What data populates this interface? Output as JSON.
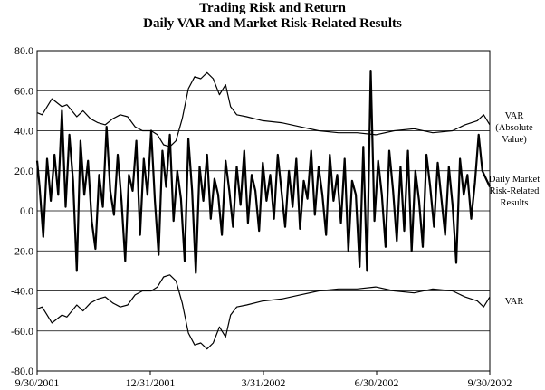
{
  "chart_data": {
    "type": "line",
    "title": "Trading Risk and Return",
    "subtitle": "Daily VAR and Market Risk-Related Results",
    "xlabel": "",
    "ylabel": "",
    "ylim": [
      -80,
      80
    ],
    "yticks": [
      "80.0",
      "60.0",
      "40.0",
      "20.0",
      "0.0",
      "-20.0",
      "-40.0",
      "-60.0",
      "-80.0"
    ],
    "xticks": [
      "9/30/2001",
      "12/31/2001",
      "3/31/2002",
      "6/30/2002",
      "9/30/2002"
    ],
    "grid": true,
    "legend_placement": "right",
    "series": [
      {
        "name": "VAR (Absolute Value)",
        "legend_lines": [
          "VAR",
          "(Absolute",
          "Value)"
        ],
        "dates": [
          "2001-09-30",
          "2001-10-04",
          "2001-10-08",
          "2001-10-12",
          "2001-10-16",
          "2001-10-20",
          "2001-10-24",
          "2001-10-28",
          "2001-11-01",
          "2001-11-06",
          "2001-11-12",
          "2001-11-18",
          "2001-11-24",
          "2001-11-30",
          "2001-12-06",
          "2001-12-12",
          "2001-12-18",
          "2001-12-24",
          "2001-12-31",
          "2002-01-05",
          "2002-01-10",
          "2002-01-15",
          "2002-01-20",
          "2002-01-25",
          "2002-01-30",
          "2002-02-04",
          "2002-02-09",
          "2002-02-14",
          "2002-02-19",
          "2002-02-24",
          "2002-03-01",
          "2002-03-05",
          "2002-03-10",
          "2002-03-18",
          "2002-03-31",
          "2002-04-15",
          "2002-04-30",
          "2002-05-15",
          "2002-05-31",
          "2002-06-15",
          "2002-06-30",
          "2002-07-15",
          "2002-07-31",
          "2002-08-15",
          "2002-08-31",
          "2002-09-10",
          "2002-09-20",
          "2002-09-25",
          "2002-09-30"
        ],
        "values": [
          49,
          48,
          52,
          56,
          54,
          52,
          53,
          50,
          47,
          50,
          46,
          44,
          43,
          46,
          48,
          47,
          42,
          40,
          40,
          38,
          33,
          32,
          35,
          46,
          61,
          67,
          66,
          69,
          66,
          58,
          63,
          52,
          48,
          47,
          45,
          44,
          42,
          40,
          39,
          39,
          38,
          40,
          41,
          39,
          40,
          43,
          45,
          48,
          43
        ]
      },
      {
        "name": "Daily Market Risk-Related Results",
        "legend_lines": [
          "Daily Market",
          "Risk-Related",
          "Results"
        ],
        "dates": [
          "2001-09-30",
          "2001-10-02",
          "2001-10-05",
          "2001-10-08",
          "2001-10-11",
          "2001-10-14",
          "2001-10-17",
          "2001-10-20",
          "2001-10-23",
          "2001-10-26",
          "2001-10-29",
          "2001-11-01",
          "2001-11-04",
          "2001-11-07",
          "2001-11-10",
          "2001-11-13",
          "2001-11-16",
          "2001-11-19",
          "2001-11-22",
          "2001-11-25",
          "2001-11-28",
          "2001-12-01",
          "2001-12-04",
          "2001-12-07",
          "2001-12-10",
          "2001-12-13",
          "2001-12-16",
          "2001-12-19",
          "2001-12-22",
          "2001-12-25",
          "2001-12-28",
          "2001-12-31",
          "2002-01-03",
          "2002-01-06",
          "2002-01-09",
          "2002-01-12",
          "2002-01-15",
          "2002-01-18",
          "2002-01-21",
          "2002-01-24",
          "2002-01-27",
          "2002-01-30",
          "2002-02-02",
          "2002-02-05",
          "2002-02-08",
          "2002-02-11",
          "2002-02-14",
          "2002-02-17",
          "2002-02-20",
          "2002-02-23",
          "2002-02-26",
          "2002-03-01",
          "2002-03-04",
          "2002-03-07",
          "2002-03-10",
          "2002-03-13",
          "2002-03-16",
          "2002-03-19",
          "2002-03-22",
          "2002-03-25",
          "2002-03-28",
          "2002-03-31",
          "2002-04-03",
          "2002-04-06",
          "2002-04-09",
          "2002-04-12",
          "2002-04-15",
          "2002-04-18",
          "2002-04-21",
          "2002-04-24",
          "2002-04-27",
          "2002-04-30",
          "2002-05-03",
          "2002-05-06",
          "2002-05-09",
          "2002-05-12",
          "2002-05-15",
          "2002-05-18",
          "2002-05-21",
          "2002-05-24",
          "2002-05-27",
          "2002-05-30",
          "2002-06-02",
          "2002-06-05",
          "2002-06-08",
          "2002-06-11",
          "2002-06-14",
          "2002-06-17",
          "2002-06-20",
          "2002-06-23",
          "2002-06-26",
          "2002-06-29",
          "2002-07-02",
          "2002-07-05",
          "2002-07-08",
          "2002-07-11",
          "2002-07-14",
          "2002-07-17",
          "2002-07-20",
          "2002-07-23",
          "2002-07-26",
          "2002-07-29",
          "2002-08-01",
          "2002-08-04",
          "2002-08-07",
          "2002-08-10",
          "2002-08-13",
          "2002-08-16",
          "2002-08-19",
          "2002-08-22",
          "2002-08-25",
          "2002-08-28",
          "2002-08-31",
          "2002-09-03",
          "2002-09-06",
          "2002-09-09",
          "2002-09-12",
          "2002-09-15",
          "2002-09-18",
          "2002-09-21",
          "2002-09-24",
          "2002-09-27",
          "2002-09-30"
        ],
        "values": [
          25,
          12,
          -13,
          26,
          5,
          28,
          8,
          50,
          2,
          38,
          15,
          -30,
          35,
          8,
          25,
          -5,
          -19,
          18,
          2,
          42,
          10,
          -2,
          28,
          5,
          -25,
          18,
          10,
          35,
          -12,
          26,
          8,
          40,
          5,
          -22,
          30,
          12,
          38,
          -5,
          20,
          6,
          -25,
          36,
          10,
          -31,
          22,
          5,
          28,
          -4,
          16,
          8,
          -12,
          25,
          10,
          -8,
          22,
          3,
          30,
          -6,
          18,
          10,
          -10,
          24,
          5,
          18,
          -4,
          28,
          10,
          -8,
          20,
          2,
          26,
          -9,
          15,
          6,
          30,
          -2,
          22,
          8,
          -12,
          28,
          5,
          18,
          -6,
          26,
          -20,
          15,
          8,
          -28,
          32,
          -30,
          70,
          -5,
          25,
          8,
          -18,
          30,
          10,
          -15,
          22,
          -10,
          30,
          -20,
          20,
          5,
          -18,
          28,
          12,
          -8,
          24,
          6,
          -12,
          22,
          3,
          -26,
          26,
          8,
          18,
          -4,
          14,
          38,
          20,
          16,
          12
        ]
      },
      {
        "name": "VAR",
        "legend_lines": [
          "VAR"
        ],
        "mirror_of": "VAR (Absolute Value)"
      }
    ]
  }
}
